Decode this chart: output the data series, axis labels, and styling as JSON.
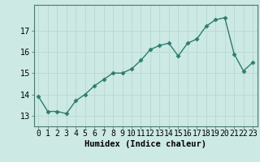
{
  "x": [
    0,
    1,
    2,
    3,
    4,
    5,
    6,
    7,
    8,
    9,
    10,
    11,
    12,
    13,
    14,
    15,
    16,
    17,
    18,
    19,
    20,
    21,
    22,
    23
  ],
  "y": [
    13.9,
    13.2,
    13.2,
    13.1,
    13.7,
    14.0,
    14.4,
    14.7,
    15.0,
    15.0,
    15.2,
    15.6,
    16.1,
    16.3,
    16.4,
    15.8,
    16.4,
    16.6,
    17.2,
    17.5,
    17.6,
    15.9,
    15.1,
    15.5
  ],
  "line_color": "#2d7d6e",
  "marker": "D",
  "marker_size": 2.5,
  "bg_color": "#cce9e4",
  "grid_color": "#b8d8d3",
  "xlabel": "Humidex (Indice chaleur)",
  "ylim": [
    12.5,
    18.2
  ],
  "xlim": [
    -0.5,
    23.5
  ],
  "yticks": [
    13,
    14,
    15,
    16,
    17
  ],
  "xlabel_fontsize": 7.5,
  "tick_fontsize": 7,
  "line_width": 1.0
}
